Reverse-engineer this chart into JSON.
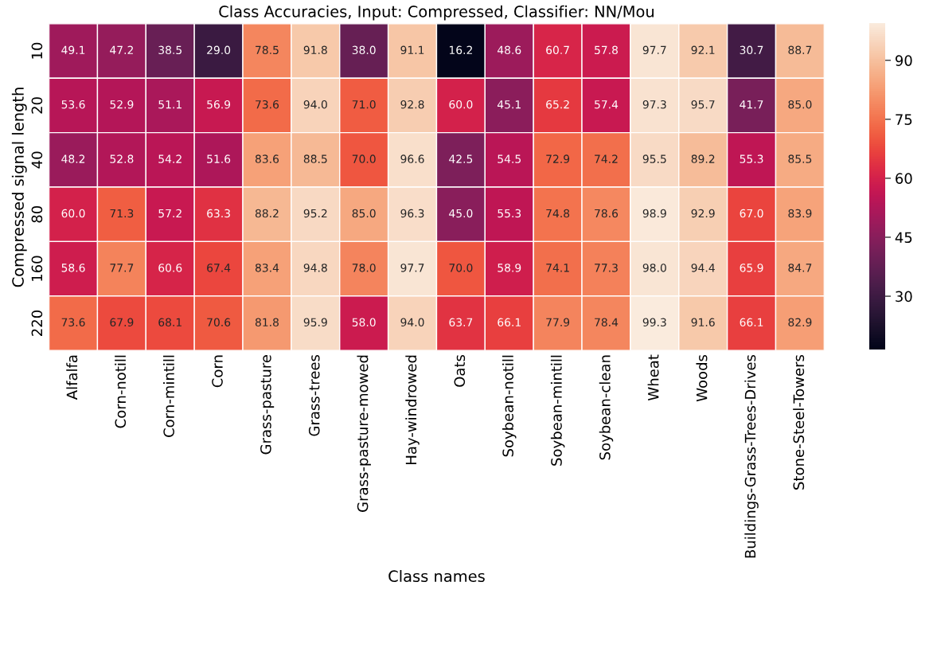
{
  "chart_data": {
    "type": "heatmap",
    "title": "Class Accuracies, Input: Compressed, Classifier: NN/Mou",
    "xlabel": "Class names",
    "ylabel": "Compressed signal length",
    "categories": [
      "Alfalfa",
      "Corn-notill",
      "Corn-mintill",
      "Corn",
      "Grass-pasture",
      "Grass-trees",
      "Grass-pasture-mowed",
      "Hay-windrowed",
      "Oats",
      "Soybean-notill",
      "Soybean-mintill",
      "Soybean-clean",
      "Wheat",
      "Woods",
      "Buildings-Grass-Trees-Drives",
      "Stone-Steel-Towers"
    ],
    "y_categories": [
      "10",
      "20",
      "40",
      "80",
      "160",
      "220"
    ],
    "cells": [
      [
        49.1,
        47.2,
        38.5,
        29.0,
        78.5,
        91.8,
        38.0,
        91.1,
        16.2,
        48.6,
        60.7,
        57.8,
        97.7,
        92.1,
        30.7,
        88.7
      ],
      [
        53.6,
        52.9,
        51.1,
        56.9,
        73.6,
        94.0,
        71.0,
        92.8,
        60.0,
        45.1,
        65.2,
        57.4,
        97.3,
        95.7,
        41.7,
        85.0
      ],
      [
        48.2,
        52.8,
        54.2,
        51.6,
        83.6,
        88.5,
        70.0,
        96.6,
        42.5,
        54.5,
        72.9,
        74.2,
        95.5,
        89.2,
        55.3,
        85.5
      ],
      [
        60.0,
        71.3,
        57.2,
        63.3,
        88.2,
        95.2,
        85.0,
        96.3,
        45.0,
        55.3,
        74.8,
        78.6,
        98.9,
        92.9,
        67.0,
        83.9
      ],
      [
        58.6,
        77.7,
        60.6,
        67.4,
        83.4,
        94.8,
        78.0,
        97.7,
        70.0,
        58.9,
        74.1,
        77.3,
        98.0,
        94.4,
        65.9,
        84.7
      ],
      [
        73.6,
        67.9,
        68.1,
        70.6,
        81.8,
        95.9,
        58.0,
        94.0,
        63.7,
        66.1,
        77.9,
        78.4,
        99.3,
        91.6,
        66.1,
        82.9
      ]
    ],
    "cell_labels": [
      [
        "49.1",
        "47.2",
        "38.5",
        "29.0",
        "78.5",
        "91.8",
        "38.0",
        "91.1",
        "16.2",
        "48.6",
        "60.7",
        "57.8",
        "97.7",
        "92.1",
        "30.7",
        "88.7"
      ],
      [
        "53.6",
        "52.9",
        "51.1",
        "56.9",
        "73.6",
        "94.0",
        "71.0",
        "92.8",
        "60.0",
        "45.1",
        "65.2",
        "57.4",
        "97.3",
        "95.7",
        "41.7",
        "85.0"
      ],
      [
        "48.2",
        "52.8",
        "54.2",
        "51.6",
        "83.6",
        "88.5",
        "70.0",
        "96.6",
        "42.5",
        "54.5",
        "72.9",
        "74.2",
        "95.5",
        "89.2",
        "55.3",
        "85.5"
      ],
      [
        "60.0",
        "71.3",
        "57.2",
        "63.3",
        "88.2",
        "95.2",
        "85.0",
        "96.3",
        "45.0",
        "55.3",
        "74.8",
        "78.6",
        "98.9",
        "92.9",
        "67.0",
        "83.9"
      ],
      [
        "58.6",
        "77.7",
        "60.6",
        "67.4",
        "83.4",
        "94.8",
        "78.0",
        "97.7",
        "70.0",
        "58.9",
        "74.1",
        "77.3",
        "98.0",
        "94.4",
        "65.9",
        "84.7"
      ],
      [
        "73.6",
        "67.9",
        "68.1",
        "70.6",
        "81.8",
        "95.9",
        "58.0",
        "94.0",
        "63.7",
        "66.1",
        "77.9",
        "78.4",
        "99.3",
        "91.6",
        "66.1",
        "82.9"
      ]
    ],
    "clim": [
      16.2,
      99.3
    ],
    "cticks": [
      30,
      45,
      60,
      75,
      90
    ]
  }
}
